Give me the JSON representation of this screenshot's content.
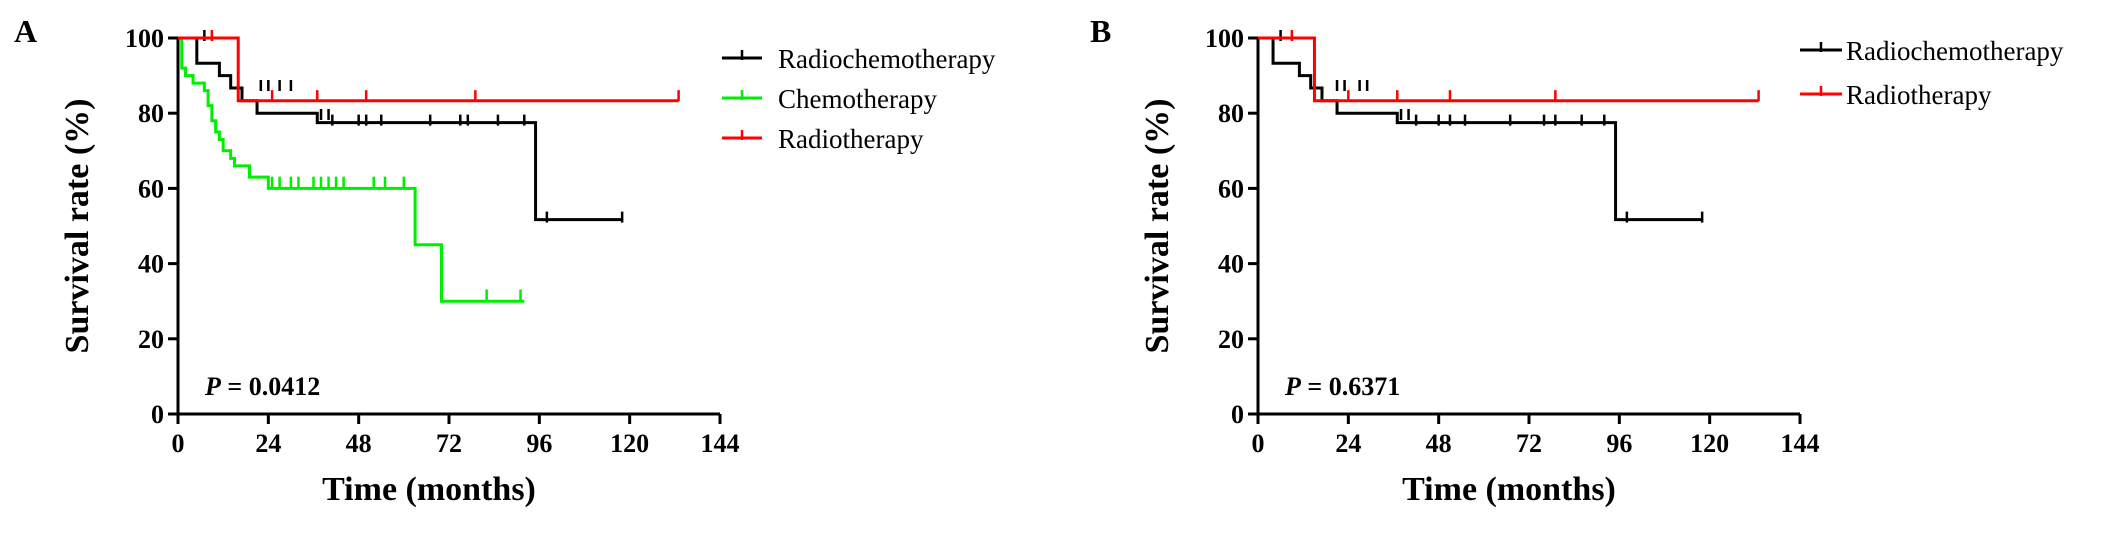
{
  "chart_data": [
    {
      "panel_label": "A",
      "type": "line",
      "step": true,
      "xlabel": "Time (months)",
      "ylabel": "Survival rate (%)",
      "xlim": [
        0,
        144
      ],
      "ylim": [
        0,
        100
      ],
      "xticks": [
        0,
        24,
        48,
        72,
        96,
        120,
        144
      ],
      "yticks": [
        0,
        20,
        40,
        60,
        80,
        100
      ],
      "legend_position": "right",
      "annotation": {
        "p_symbol": "P",
        "p_rest": " = 0.0412"
      },
      "series": [
        {
          "name": "Radiochemotherapy",
          "color": "#000000",
          "steps": [
            [
              0,
              100
            ],
            [
              5,
              93.3
            ],
            [
              11,
              90
            ],
            [
              14,
              86.7
            ],
            [
              17,
              83.3
            ],
            [
              21,
              80
            ],
            [
              36,
              80
            ],
            [
              37,
              77.5
            ],
            [
              95,
              77.5
            ],
            [
              95,
              51.7
            ],
            [
              118,
              51.7
            ]
          ],
          "censored": [
            [
              7,
              100
            ],
            [
              22,
              86.7
            ],
            [
              24,
              86.7
            ],
            [
              27,
              86.7
            ],
            [
              30,
              86.7
            ],
            [
              38,
              79
            ],
            [
              40,
              79
            ],
            [
              41,
              77.5
            ],
            [
              48,
              77.5
            ],
            [
              50,
              77.5
            ],
            [
              54,
              77.5
            ],
            [
              67,
              77.5
            ],
            [
              75,
              77.5
            ],
            [
              77,
              77.5
            ],
            [
              85,
              77.5
            ],
            [
              92,
              77.5
            ],
            [
              98,
              51.7
            ],
            [
              118,
              51.7
            ]
          ]
        },
        {
          "name": "Chemotherapy",
          "color": "#00ee00",
          "steps": [
            [
              0,
              100
            ],
            [
              1,
              92
            ],
            [
              2,
              90
            ],
            [
              4,
              88
            ],
            [
              7,
              86
            ],
            [
              8,
              82
            ],
            [
              9,
              78
            ],
            [
              10,
              75
            ],
            [
              11,
              73
            ],
            [
              12,
              70
            ],
            [
              14,
              68
            ],
            [
              15,
              66
            ],
            [
              19,
              63
            ],
            [
              24,
              60
            ],
            [
              63,
              60
            ],
            [
              63,
              45
            ],
            [
              70,
              45
            ],
            [
              70,
              30
            ],
            [
              92,
              30
            ]
          ],
          "censored": [
            [
              25,
              61
            ],
            [
              27,
              61
            ],
            [
              30,
              61
            ],
            [
              32,
              61
            ],
            [
              36,
              61
            ],
            [
              38,
              61
            ],
            [
              40,
              61
            ],
            [
              42,
              61
            ],
            [
              44,
              61
            ],
            [
              52,
              61
            ],
            [
              55,
              61
            ],
            [
              60,
              61
            ],
            [
              82,
              31
            ],
            [
              91,
              31
            ]
          ]
        },
        {
          "name": "Radiotherapy",
          "color": "#ff0000",
          "steps": [
            [
              0,
              100
            ],
            [
              16,
              100
            ],
            [
              16,
              83.3
            ],
            [
              133,
              83.3
            ]
          ],
          "censored": [
            [
              9,
              100
            ],
            [
              25,
              84
            ],
            [
              37,
              84
            ],
            [
              50,
              84
            ],
            [
              79,
              84
            ],
            [
              133,
              84
            ]
          ]
        }
      ]
    },
    {
      "panel_label": "B",
      "type": "line",
      "step": true,
      "xlabel": "Time (months)",
      "ylabel": "Survival rate (%)",
      "xlim": [
        0,
        144
      ],
      "ylim": [
        0,
        100
      ],
      "xticks": [
        0,
        24,
        48,
        72,
        96,
        120,
        144
      ],
      "yticks": [
        0,
        20,
        40,
        60,
        80,
        100
      ],
      "legend_position": "top-right",
      "annotation": {
        "p_symbol": "P",
        "p_rest": " = 0.6371"
      },
      "series": [
        {
          "name": "Radiochemotherapy",
          "color": "#000000",
          "steps": [
            [
              0,
              100
            ],
            [
              4,
              93.3
            ],
            [
              11,
              90
            ],
            [
              14,
              86.7
            ],
            [
              17,
              83.3
            ],
            [
              21,
              80
            ],
            [
              36,
              80
            ],
            [
              37,
              77.5
            ],
            [
              95,
              77.5
            ],
            [
              95,
              51.7
            ],
            [
              118,
              51.7
            ]
          ],
          "censored": [
            [
              6,
              100
            ],
            [
              21,
              86.7
            ],
            [
              23,
              86.7
            ],
            [
              27,
              86.7
            ],
            [
              29,
              86.7
            ],
            [
              38,
              79
            ],
            [
              40,
              79
            ],
            [
              42,
              77.5
            ],
            [
              48,
              77.5
            ],
            [
              51,
              77.5
            ],
            [
              55,
              77.5
            ],
            [
              67,
              77.5
            ],
            [
              76,
              77.5
            ],
            [
              79,
              77.5
            ],
            [
              86,
              77.5
            ],
            [
              92,
              77.5
            ],
            [
              98,
              51.7
            ],
            [
              118,
              51.7
            ]
          ]
        },
        {
          "name": "Radiotherapy",
          "color": "#ff0000",
          "steps": [
            [
              0,
              100
            ],
            [
              15,
              100
            ],
            [
              15,
              83.3
            ],
            [
              133,
              83.3
            ]
          ],
          "censored": [
            [
              9,
              100
            ],
            [
              24,
              84
            ],
            [
              37,
              84
            ],
            [
              51,
              84
            ],
            [
              79,
              84
            ],
            [
              133,
              84
            ]
          ]
        }
      ]
    }
  ]
}
